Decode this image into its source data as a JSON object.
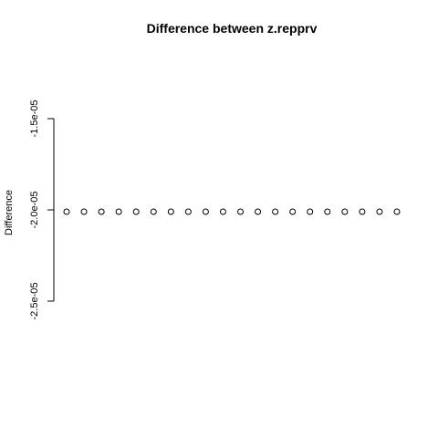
{
  "chart_data": {
    "type": "scatter",
    "title": "Difference between z.repprv",
    "xlabel": "",
    "ylabel": "Difference",
    "ylim": [
      -2.5e-05,
      -1.5e-05
    ],
    "y_ticks": [
      {
        "value": -1.5e-05,
        "label": "-1.5e-05"
      },
      {
        "value": -2e-05,
        "label": "-2.0e-05"
      },
      {
        "value": -2.5e-05,
        "label": "-2.5e-05"
      }
    ],
    "x_axis_visible": false,
    "grid": false,
    "x": [
      1,
      2,
      3,
      4,
      5,
      6,
      7,
      8,
      9,
      10,
      11,
      12,
      13,
      14,
      15,
      16,
      17,
      18,
      19,
      20
    ],
    "y": [
      -2.01e-05,
      -2.01e-05,
      -2.01e-05,
      -2.01e-05,
      -2.01e-05,
      -2.01e-05,
      -2.01e-05,
      -2.01e-05,
      -2.01e-05,
      -2.01e-05,
      -2.01e-05,
      -2.01e-05,
      -2.01e-05,
      -2.01e-05,
      -2.01e-05,
      -2.01e-05,
      -2.01e-05,
      -2.01e-05,
      -2.01e-05,
      -2.01e-05
    ],
    "marker": "open-circle",
    "color": "#000000"
  }
}
